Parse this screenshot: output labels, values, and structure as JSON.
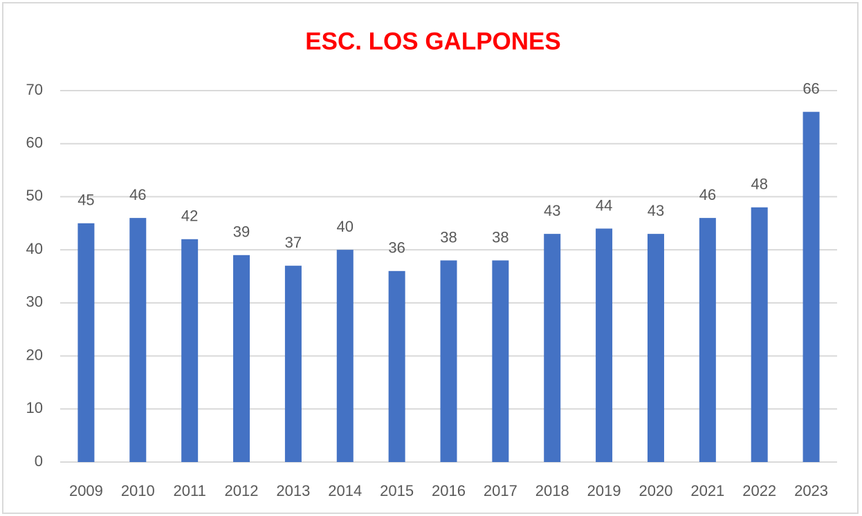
{
  "chart_data": {
    "type": "bar",
    "title": "ESC. LOS GALPONES",
    "categories": [
      "2009",
      "2010",
      "2011",
      "2012",
      "2013",
      "2014",
      "2015",
      "2016",
      "2017",
      "2018",
      "2019",
      "2020",
      "2021",
      "2022",
      "2023"
    ],
    "values": [
      45,
      46,
      42,
      39,
      37,
      40,
      36,
      38,
      38,
      43,
      44,
      43,
      46,
      48,
      66
    ],
    "color": "#4472c4",
    "ylim": [
      0,
      70
    ],
    "yticks": [
      0,
      10,
      20,
      30,
      40,
      50,
      60,
      70
    ],
    "grid": true,
    "data_labels": true
  }
}
